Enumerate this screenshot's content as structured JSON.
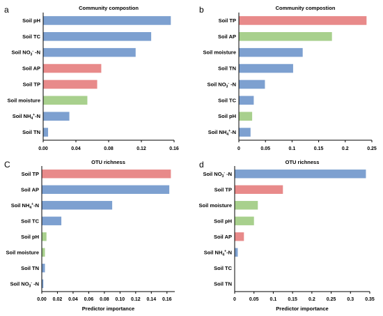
{
  "colors": {
    "blue": "#7da0d0",
    "red": "#e88a8a",
    "green": "#a8d08d"
  },
  "chart_data": [
    {
      "type": "bar",
      "orientation": "horizontal",
      "panel": "a",
      "title": "Community compostion",
      "xlabel": "",
      "categories": [
        [
          "Soil pH"
        ],
        [
          "Soil TC"
        ],
        [
          "Soil NO",
          "3",
          "-",
          " -N"
        ],
        [
          "Soil AP"
        ],
        [
          "Soil TP"
        ],
        [
          "Soil moisture"
        ],
        [
          "Soil NH",
          "4",
          "+",
          "-N"
        ],
        [
          "Soil TN"
        ]
      ],
      "values": [
        0.156,
        0.132,
        0.113,
        0.071,
        0.066,
        0.054,
        0.032,
        0.006
      ],
      "colors": [
        "blue",
        "blue",
        "blue",
        "red",
        "red",
        "green",
        "blue",
        "blue"
      ],
      "xlim": [
        0,
        0.16
      ],
      "ticks": [
        0,
        0.04,
        0.08,
        0.12,
        0.16
      ],
      "tick_labels": [
        "0.00",
        "0.04",
        "0.08",
        "0.12",
        "0.16"
      ],
      "grid": false
    },
    {
      "type": "bar",
      "orientation": "horizontal",
      "panel": "b",
      "title": "Community compostion",
      "xlabel": "",
      "categories": [
        [
          "Soil TP"
        ],
        [
          "Soil AP"
        ],
        [
          "Soil moisture"
        ],
        [
          "Soil TN"
        ],
        [
          "Soil NO",
          "3",
          "-",
          " -N"
        ],
        [
          "Soil TC"
        ],
        [
          "Soil pH"
        ],
        [
          "Soil NH",
          "4",
          "+",
          "-N"
        ]
      ],
      "values": [
        0.24,
        0.175,
        0.12,
        0.102,
        0.049,
        0.028,
        0.025,
        0.022
      ],
      "colors": [
        "red",
        "green",
        "blue",
        "blue",
        "blue",
        "blue",
        "green",
        "blue"
      ],
      "xlim": [
        0,
        0.25
      ],
      "ticks": [
        0,
        0.05,
        0.1,
        0.15,
        0.2,
        0.25
      ],
      "tick_labels": [
        "0",
        "0.05",
        "0.1",
        "0.15",
        "0.2",
        "0.25"
      ],
      "grid": false
    },
    {
      "type": "bar",
      "orientation": "horizontal",
      "panel": "C",
      "title": "OTU richness",
      "xlabel": "Predictor importance",
      "categories": [
        [
          "Soil TP"
        ],
        [
          "Soil AP"
        ],
        [
          "Soil NH",
          "4",
          "+",
          "-N"
        ],
        [
          "Soil TC"
        ],
        [
          "Soil pH"
        ],
        [
          "Soil moisture"
        ],
        [
          "Soil TN"
        ],
        [
          "Soil NO",
          "3",
          "-",
          " -N"
        ]
      ],
      "values": [
        0.165,
        0.163,
        0.09,
        0.025,
        0.006,
        0.004,
        0.004,
        0.002
      ],
      "colors": [
        "red",
        "blue",
        "blue",
        "blue",
        "green",
        "green",
        "blue",
        "blue"
      ],
      "xlim": [
        0,
        0.17
      ],
      "ticks": [
        0,
        0.02,
        0.04,
        0.06,
        0.08,
        0.1,
        0.12,
        0.14,
        0.16
      ],
      "tick_labels": [
        "0.00",
        "0.02",
        "0.04",
        "0.06",
        "0.08",
        "0.10",
        "0.12",
        "0.14",
        "0.16"
      ],
      "grid": false
    },
    {
      "type": "bar",
      "orientation": "horizontal",
      "panel": "d",
      "title": "OTU richness",
      "xlabel": "Predictor importance",
      "categories": [
        [
          "Soil NO",
          "3",
          "-",
          " -N"
        ],
        [
          "Soil TP"
        ],
        [
          "Soil moisture"
        ],
        [
          "Soil pH"
        ],
        [
          "Soil AP"
        ],
        [
          "Soil NH",
          "4",
          "+",
          "-N"
        ],
        [
          "Soil TC"
        ],
        [
          "Soil TN"
        ]
      ],
      "values": [
        0.34,
        0.125,
        0.06,
        0.05,
        0.024,
        0.008,
        0.0,
        0.0
      ],
      "colors": [
        "blue",
        "red",
        "green",
        "green",
        "red",
        "blue",
        "blue",
        "blue"
      ],
      "xlim": [
        0,
        0.35
      ],
      "ticks": [
        0,
        0.05,
        0.1,
        0.15,
        0.2,
        0.25,
        0.3,
        0.35
      ],
      "tick_labels": [
        "0",
        "0.05",
        "0.1",
        "0.15",
        "0.2",
        "0.25",
        "0.3",
        "0.35"
      ],
      "grid": false
    }
  ]
}
